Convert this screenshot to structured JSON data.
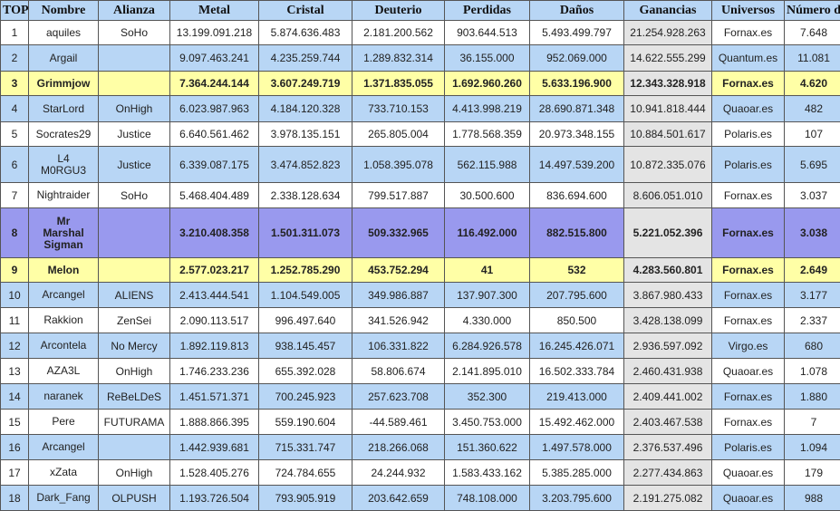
{
  "headers": [
    "TOP",
    "Nombre",
    "Alianza",
    "Metal",
    "Cristal",
    "Deuterio",
    "Perdidas",
    "Daños",
    "Ganancias",
    "Universos",
    "Número de CR"
  ],
  "colors": {
    "white": "#ffffff",
    "blue": "#b8d6f5",
    "yellow": "#ffffa6",
    "purple": "#9999ee",
    "gain": "#e4e4e4"
  },
  "rows": [
    {
      "top": "1",
      "nombre": "aquiles",
      "alianza": "SoHo",
      "metal": "13.199.091.218",
      "cristal": "5.874.636.483",
      "deuterio": "2.181.200.562",
      "perdidas": "903.644.513",
      "danos": "5.493.499.797",
      "ganancias": "21.254.928.263",
      "universo": "Fornax.es",
      "cr": "7.648",
      "style": "white",
      "bold": false
    },
    {
      "top": "2",
      "nombre": "Argail",
      "alianza": "",
      "metal": "9.097.463.241",
      "cristal": "4.235.259.744",
      "deuterio": "1.289.832.314",
      "perdidas": "36.155.000",
      "danos": "952.069.000",
      "ganancias": "14.622.555.299",
      "universo": "Quantum.es",
      "cr": "11.081",
      "style": "blue",
      "bold": false
    },
    {
      "top": "3",
      "nombre": "Grimmjow",
      "alianza": "",
      "metal": "7.364.244.144",
      "cristal": "3.607.249.719",
      "deuterio": "1.371.835.055",
      "perdidas": "1.692.960.260",
      "danos": "5.633.196.900",
      "ganancias": "12.343.328.918",
      "universo": "Fornax.es",
      "cr": "4.620",
      "style": "yellow",
      "bold": true
    },
    {
      "top": "4",
      "nombre": "StarLord",
      "alianza": "OnHigh",
      "metal": "6.023.987.963",
      "cristal": "4.184.120.328",
      "deuterio": "733.710.153",
      "perdidas": "4.413.998.219",
      "danos": "28.690.871.348",
      "ganancias": "10.941.818.444",
      "universo": "Quaoar.es",
      "cr": "482",
      "style": "blue",
      "bold": false
    },
    {
      "top": "5",
      "nombre": "Socrates29",
      "alianza": "Justice",
      "metal": "6.640.561.462",
      "cristal": "3.978.135.151",
      "deuterio": "265.805.004",
      "perdidas": "1.778.568.359",
      "danos": "20.973.348.155",
      "ganancias": "10.884.501.617",
      "universo": "Polaris.es",
      "cr": "107",
      "style": "white",
      "bold": false
    },
    {
      "top": "6",
      "nombre": "L4\nM0RGU3",
      "alianza": "Justice",
      "metal": "6.339.087.175",
      "cristal": "3.474.852.823",
      "deuterio": "1.058.395.078",
      "perdidas": "562.115.988",
      "danos": "14.497.539.200",
      "ganancias": "10.872.335.076",
      "universo": "Polaris.es",
      "cr": "5.695",
      "style": "blue",
      "bold": false
    },
    {
      "top": "7",
      "nombre": "Nightraider",
      "alianza": "SoHo",
      "metal": "5.468.404.489",
      "cristal": "2.338.128.634",
      "deuterio": "799.517.887",
      "perdidas": "30.500.600",
      "danos": "836.694.600",
      "ganancias": "8.606.051.010",
      "universo": "Fornax.es",
      "cr": "3.037",
      "style": "white",
      "bold": false
    },
    {
      "top": "8",
      "nombre": "Mr\nMarshal\nSigman",
      "alianza": "",
      "metal": "3.210.408.358",
      "cristal": "1.501.311.073",
      "deuterio": "509.332.965",
      "perdidas": "116.492.000",
      "danos": "882.515.800",
      "ganancias": "5.221.052.396",
      "universo": "Fornax.es",
      "cr": "3.038",
      "style": "purple",
      "bold": true
    },
    {
      "top": "9",
      "nombre": "Melon",
      "alianza": "",
      "metal": "2.577.023.217",
      "cristal": "1.252.785.290",
      "deuterio": "453.752.294",
      "perdidas": "41",
      "danos": "532",
      "ganancias": "4.283.560.801",
      "universo": "Fornax.es",
      "cr": "2.649",
      "style": "yellow",
      "bold": true
    },
    {
      "top": "10",
      "nombre": "Arcangel",
      "alianza": "ALIENS",
      "metal": "2.413.444.541",
      "cristal": "1.104.549.005",
      "deuterio": "349.986.887",
      "perdidas": "137.907.300",
      "danos": "207.795.600",
      "ganancias": "3.867.980.433",
      "universo": "Fornax.es",
      "cr": "3.177",
      "style": "blue",
      "bold": false
    },
    {
      "top": "11",
      "nombre": "Rakkion",
      "alianza": "ZenSei",
      "metal": "2.090.113.517",
      "cristal": "996.497.640",
      "deuterio": "341.526.942",
      "perdidas": "4.330.000",
      "danos": "850.500",
      "ganancias": "3.428.138.099",
      "universo": "Fornax.es",
      "cr": "2.337",
      "style": "white",
      "bold": false
    },
    {
      "top": "12",
      "nombre": "Arcontela",
      "alianza": "No Mercy",
      "metal": "1.892.119.813",
      "cristal": "938.145.457",
      "deuterio": "106.331.822",
      "perdidas": "6.284.926.578",
      "danos": "16.245.426.071",
      "ganancias": "2.936.597.092",
      "universo": "Virgo.es",
      "cr": "680",
      "style": "blue",
      "bold": false
    },
    {
      "top": "13",
      "nombre": "AZA3L",
      "alianza": "OnHigh",
      "metal": "1.746.233.236",
      "cristal": "655.392.028",
      "deuterio": "58.806.674",
      "perdidas": "2.141.895.010",
      "danos": "16.502.333.784",
      "ganancias": "2.460.431.938",
      "universo": "Quaoar.es",
      "cr": "1.078",
      "style": "white",
      "bold": false
    },
    {
      "top": "14",
      "nombre": "naranek",
      "alianza": "ReBeLDeS",
      "metal": "1.451.571.371",
      "cristal": "700.245.923",
      "deuterio": "257.623.708",
      "perdidas": "352.300",
      "danos": "219.413.000",
      "ganancias": "2.409.441.002",
      "universo": "Fornax.es",
      "cr": "1.880",
      "style": "blue",
      "bold": false
    },
    {
      "top": "15",
      "nombre": "Pere",
      "alianza": "FUTURAMA",
      "metal": "1.888.866.395",
      "cristal": "559.190.604",
      "deuterio": "-44.589.461",
      "perdidas": "3.450.753.000",
      "danos": "15.492.462.000",
      "ganancias": "2.403.467.538",
      "universo": "Fornax.es",
      "cr": "7",
      "style": "white",
      "bold": false
    },
    {
      "top": "16",
      "nombre": "Arcangel",
      "alianza": "",
      "metal": "1.442.939.681",
      "cristal": "715.331.747",
      "deuterio": "218.266.068",
      "perdidas": "151.360.622",
      "danos": "1.497.578.000",
      "ganancias": "2.376.537.496",
      "universo": "Polaris.es",
      "cr": "1.094",
      "style": "blue",
      "bold": false
    },
    {
      "top": "17",
      "nombre": "xZata",
      "alianza": "OnHigh",
      "metal": "1.528.405.276",
      "cristal": "724.784.655",
      "deuterio": "24.244.932",
      "perdidas": "1.583.433.162",
      "danos": "5.385.285.000",
      "ganancias": "2.277.434.863",
      "universo": "Quaoar.es",
      "cr": "179",
      "style": "white",
      "bold": false
    },
    {
      "top": "18",
      "nombre": "Dark_Fang",
      "alianza": "OLPUSH",
      "metal": "1.193.726.504",
      "cristal": "793.905.919",
      "deuterio": "203.642.659",
      "perdidas": "748.108.000",
      "danos": "3.203.795.600",
      "ganancias": "2.191.275.082",
      "universo": "Quaoar.es",
      "cr": "988",
      "style": "blue",
      "bold": false
    }
  ]
}
